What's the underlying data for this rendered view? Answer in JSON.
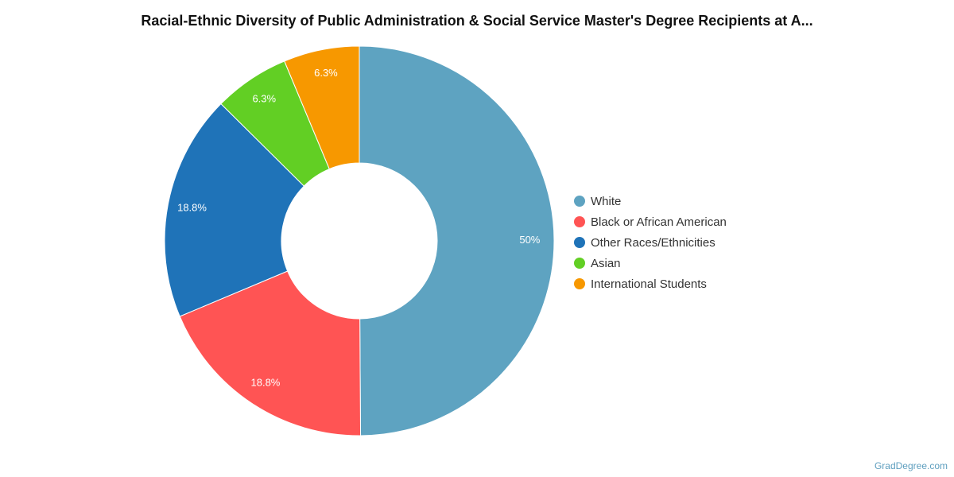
{
  "chart_data": {
    "type": "pie",
    "title": "Racial-Ethnic Diversity of Public Administration & Social Service Master's Degree Recipients at A...",
    "legend_position": "right",
    "donut": true,
    "slices": [
      {
        "name": "White",
        "value": 50,
        "label": "50%",
        "color": "#5ea3c1"
      },
      {
        "name": "Black or African American",
        "value": 18.8,
        "label": "18.8%",
        "color": "#ff5454"
      },
      {
        "name": "Other Races/Ethnicities",
        "value": 18.8,
        "label": "18.8%",
        "color": "#1f73b8"
      },
      {
        "name": "Asian",
        "value": 6.3,
        "label": "6.3%",
        "color": "#62cf24"
      },
      {
        "name": "International Students",
        "value": 6.3,
        "label": "6.3%",
        "color": "#f79800"
      }
    ]
  },
  "watermark": "GradDegree.com"
}
